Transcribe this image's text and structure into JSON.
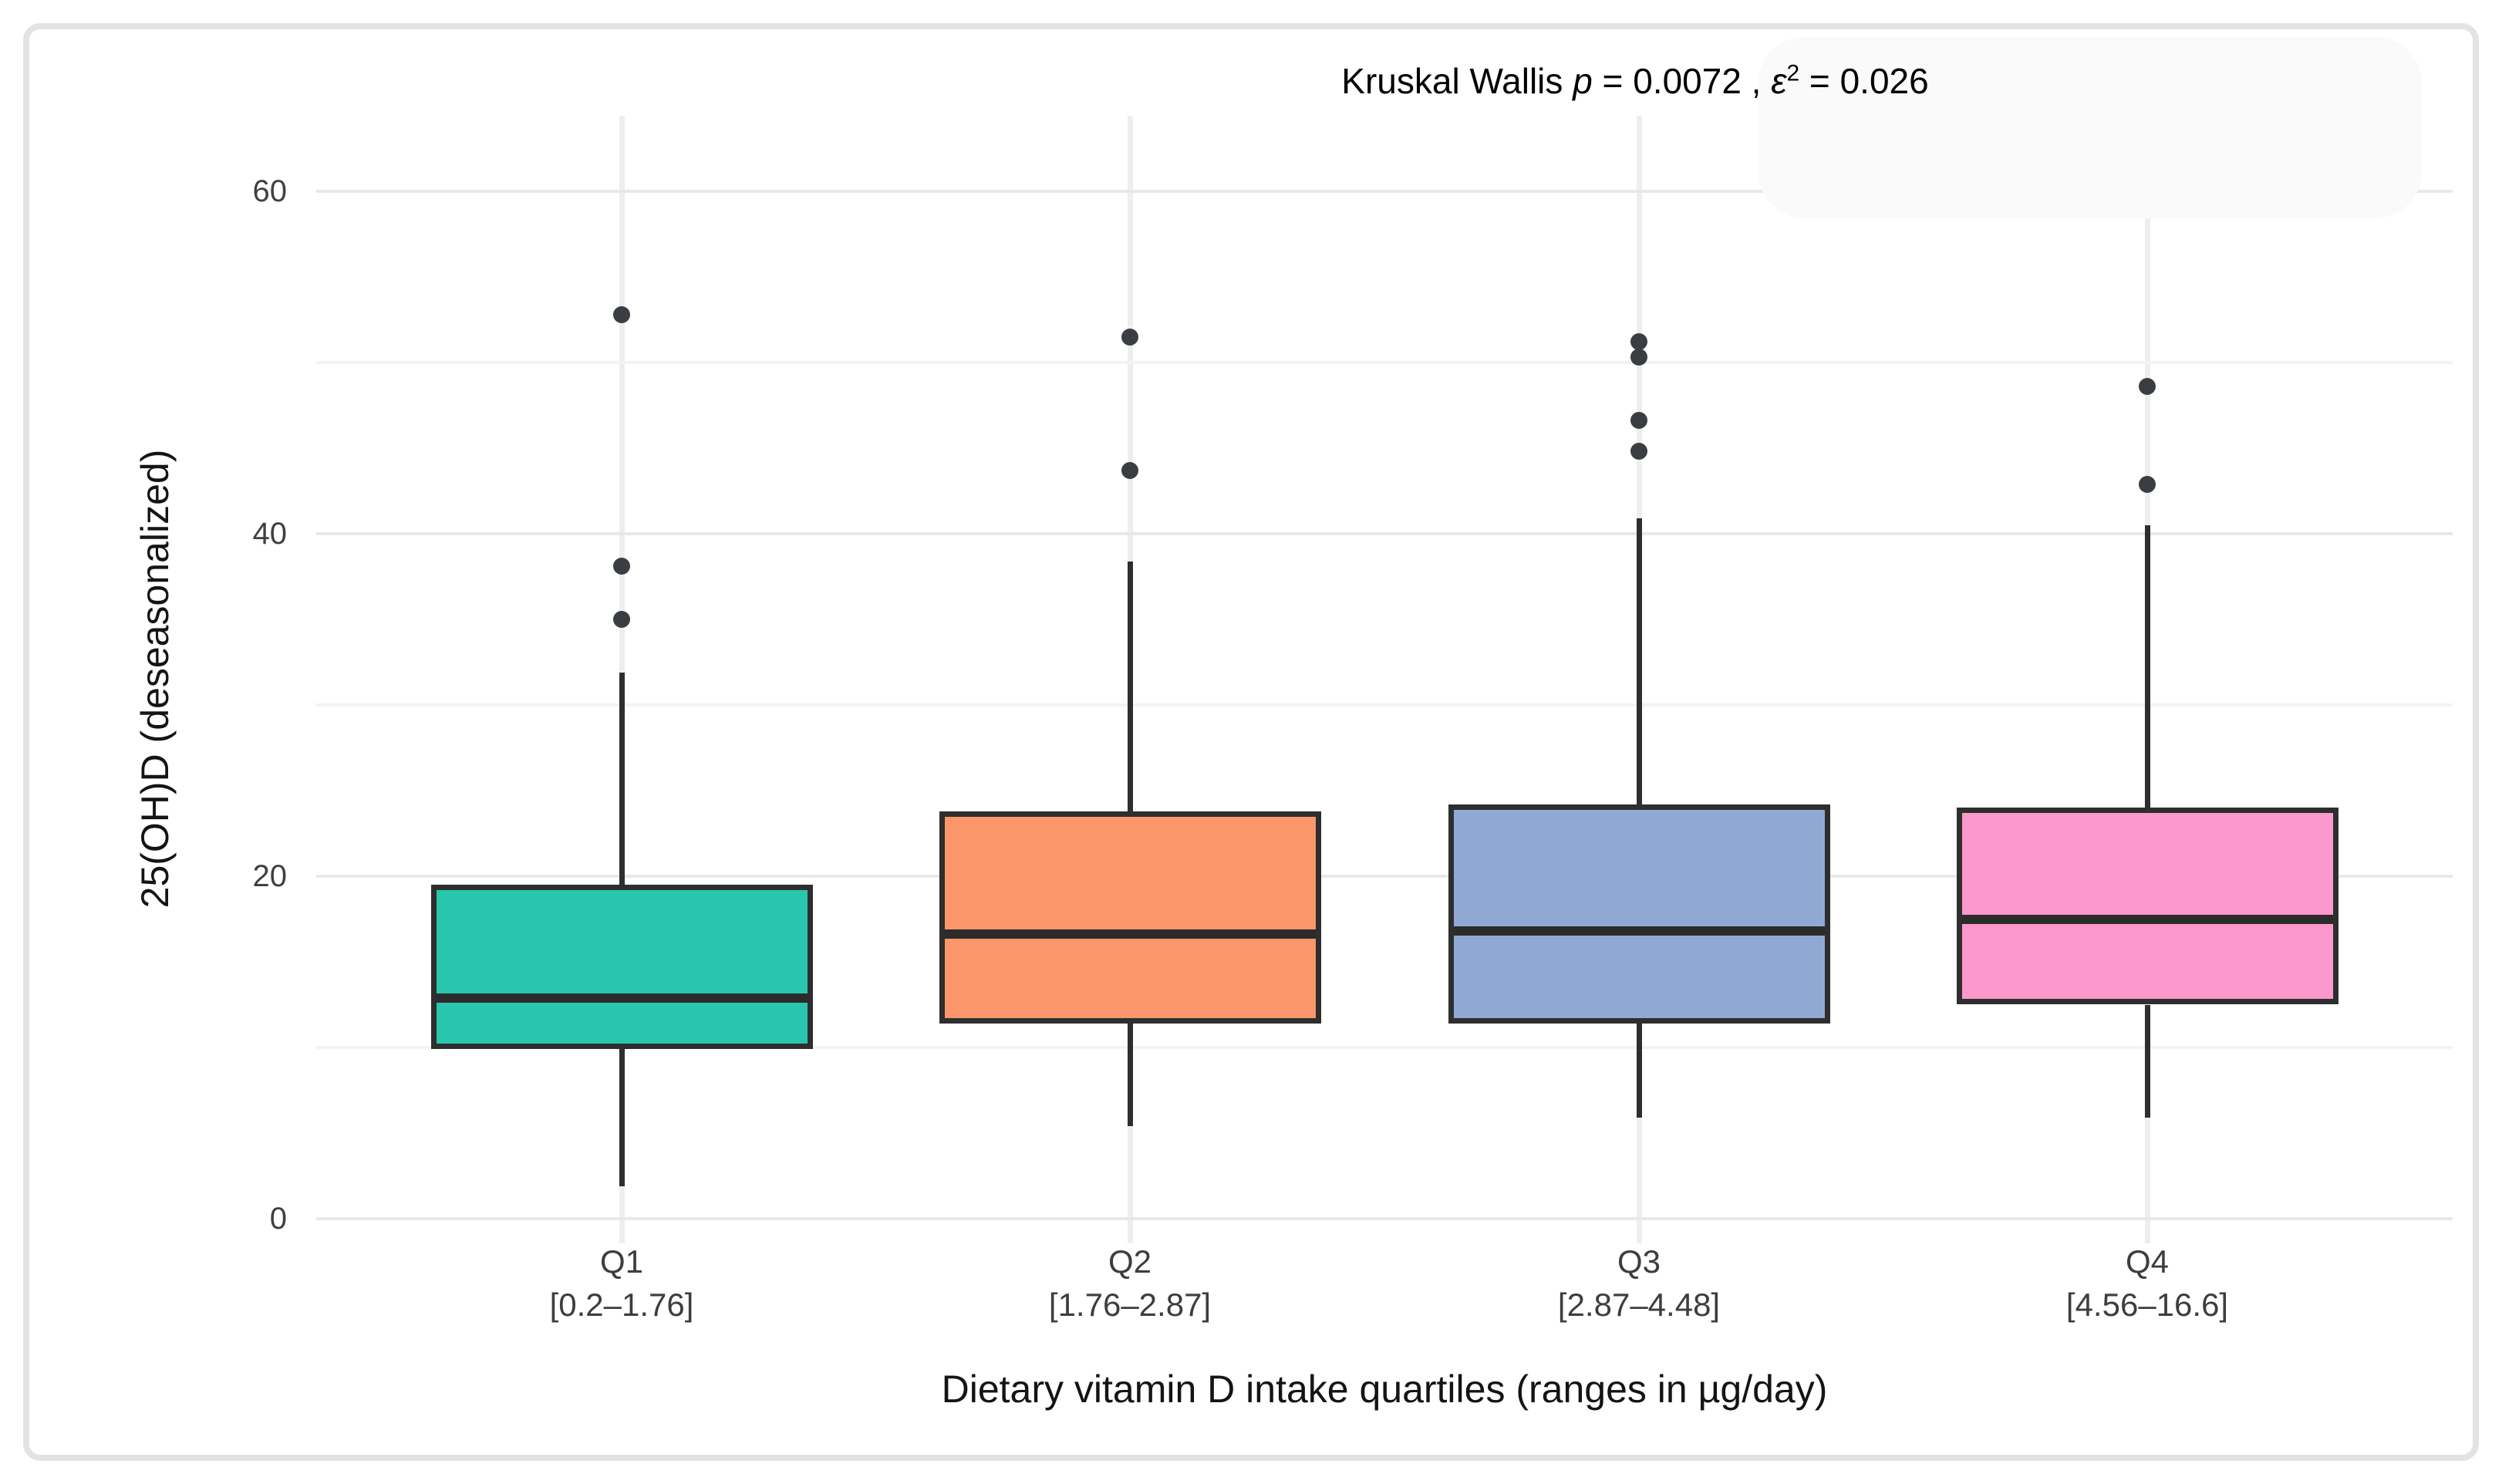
{
  "figure": {
    "background_color": "#ffffff",
    "frame_border_color": "#e3e3e3"
  },
  "annotation": {
    "prefix": "Kruskal Wallis ",
    "p_symbol": "p",
    "mid": " = 0.0072 , ",
    "epsilon_symbol": "ε",
    "epsilon_sup": "2",
    "tail": " = 0.026"
  },
  "chart_data": {
    "type": "boxplot",
    "subtitle": "Kruskal Wallis p = 0.0072 , ε² = 0.026",
    "xlabel": "Dietary vitamin D intake quartiles (ranges in µg/day)",
    "ylabel": "25(OH)D (deseasonalized)",
    "ylim": [
      0,
      62
    ],
    "yticks": [
      0,
      20,
      40,
      60
    ],
    "ytick_labels": [
      "0",
      "20",
      "40",
      "60"
    ],
    "minor_gridlines": [
      10,
      30,
      50
    ],
    "grid": "horizontal major and minor, light gray, white panel",
    "legend": "none",
    "categories": [
      {
        "label": "Q1",
        "range": "[0.2–1.76]"
      },
      {
        "label": "Q2",
        "range": "[1.76–2.87]"
      },
      {
        "label": "Q3",
        "range": "[2.87–4.48]"
      },
      {
        "label": "Q4",
        "range": "[4.56–16.6]"
      }
    ],
    "series": [
      {
        "category": "Q1",
        "color": "#28C6AC",
        "whisker_low": 1.9,
        "q1": 9.9,
        "median": 12.9,
        "q3": 19.5,
        "whisker_high": 31.9,
        "outliers": [
          35.0,
          38.1,
          52.8
        ]
      },
      {
        "category": "Q2",
        "color": "#FB976B",
        "whisker_low": 5.4,
        "q1": 11.4,
        "median": 16.6,
        "q3": 23.8,
        "whisker_high": 38.4,
        "outliers": [
          43.7,
          51.5
        ]
      },
      {
        "category": "Q3",
        "color": "#8FA9D4",
        "whisker_low": 5.9,
        "q1": 11.4,
        "median": 16.8,
        "q3": 24.2,
        "whisker_high": 40.9,
        "outliers": [
          44.8,
          46.6,
          50.3,
          51.2
        ]
      },
      {
        "category": "Q4",
        "color": "#FD98CD",
        "whisker_low": 5.9,
        "q1": 12.5,
        "median": 17.5,
        "q3": 24.0,
        "whisker_high": 40.5,
        "outliers": [
          42.9,
          48.6
        ]
      }
    ]
  }
}
